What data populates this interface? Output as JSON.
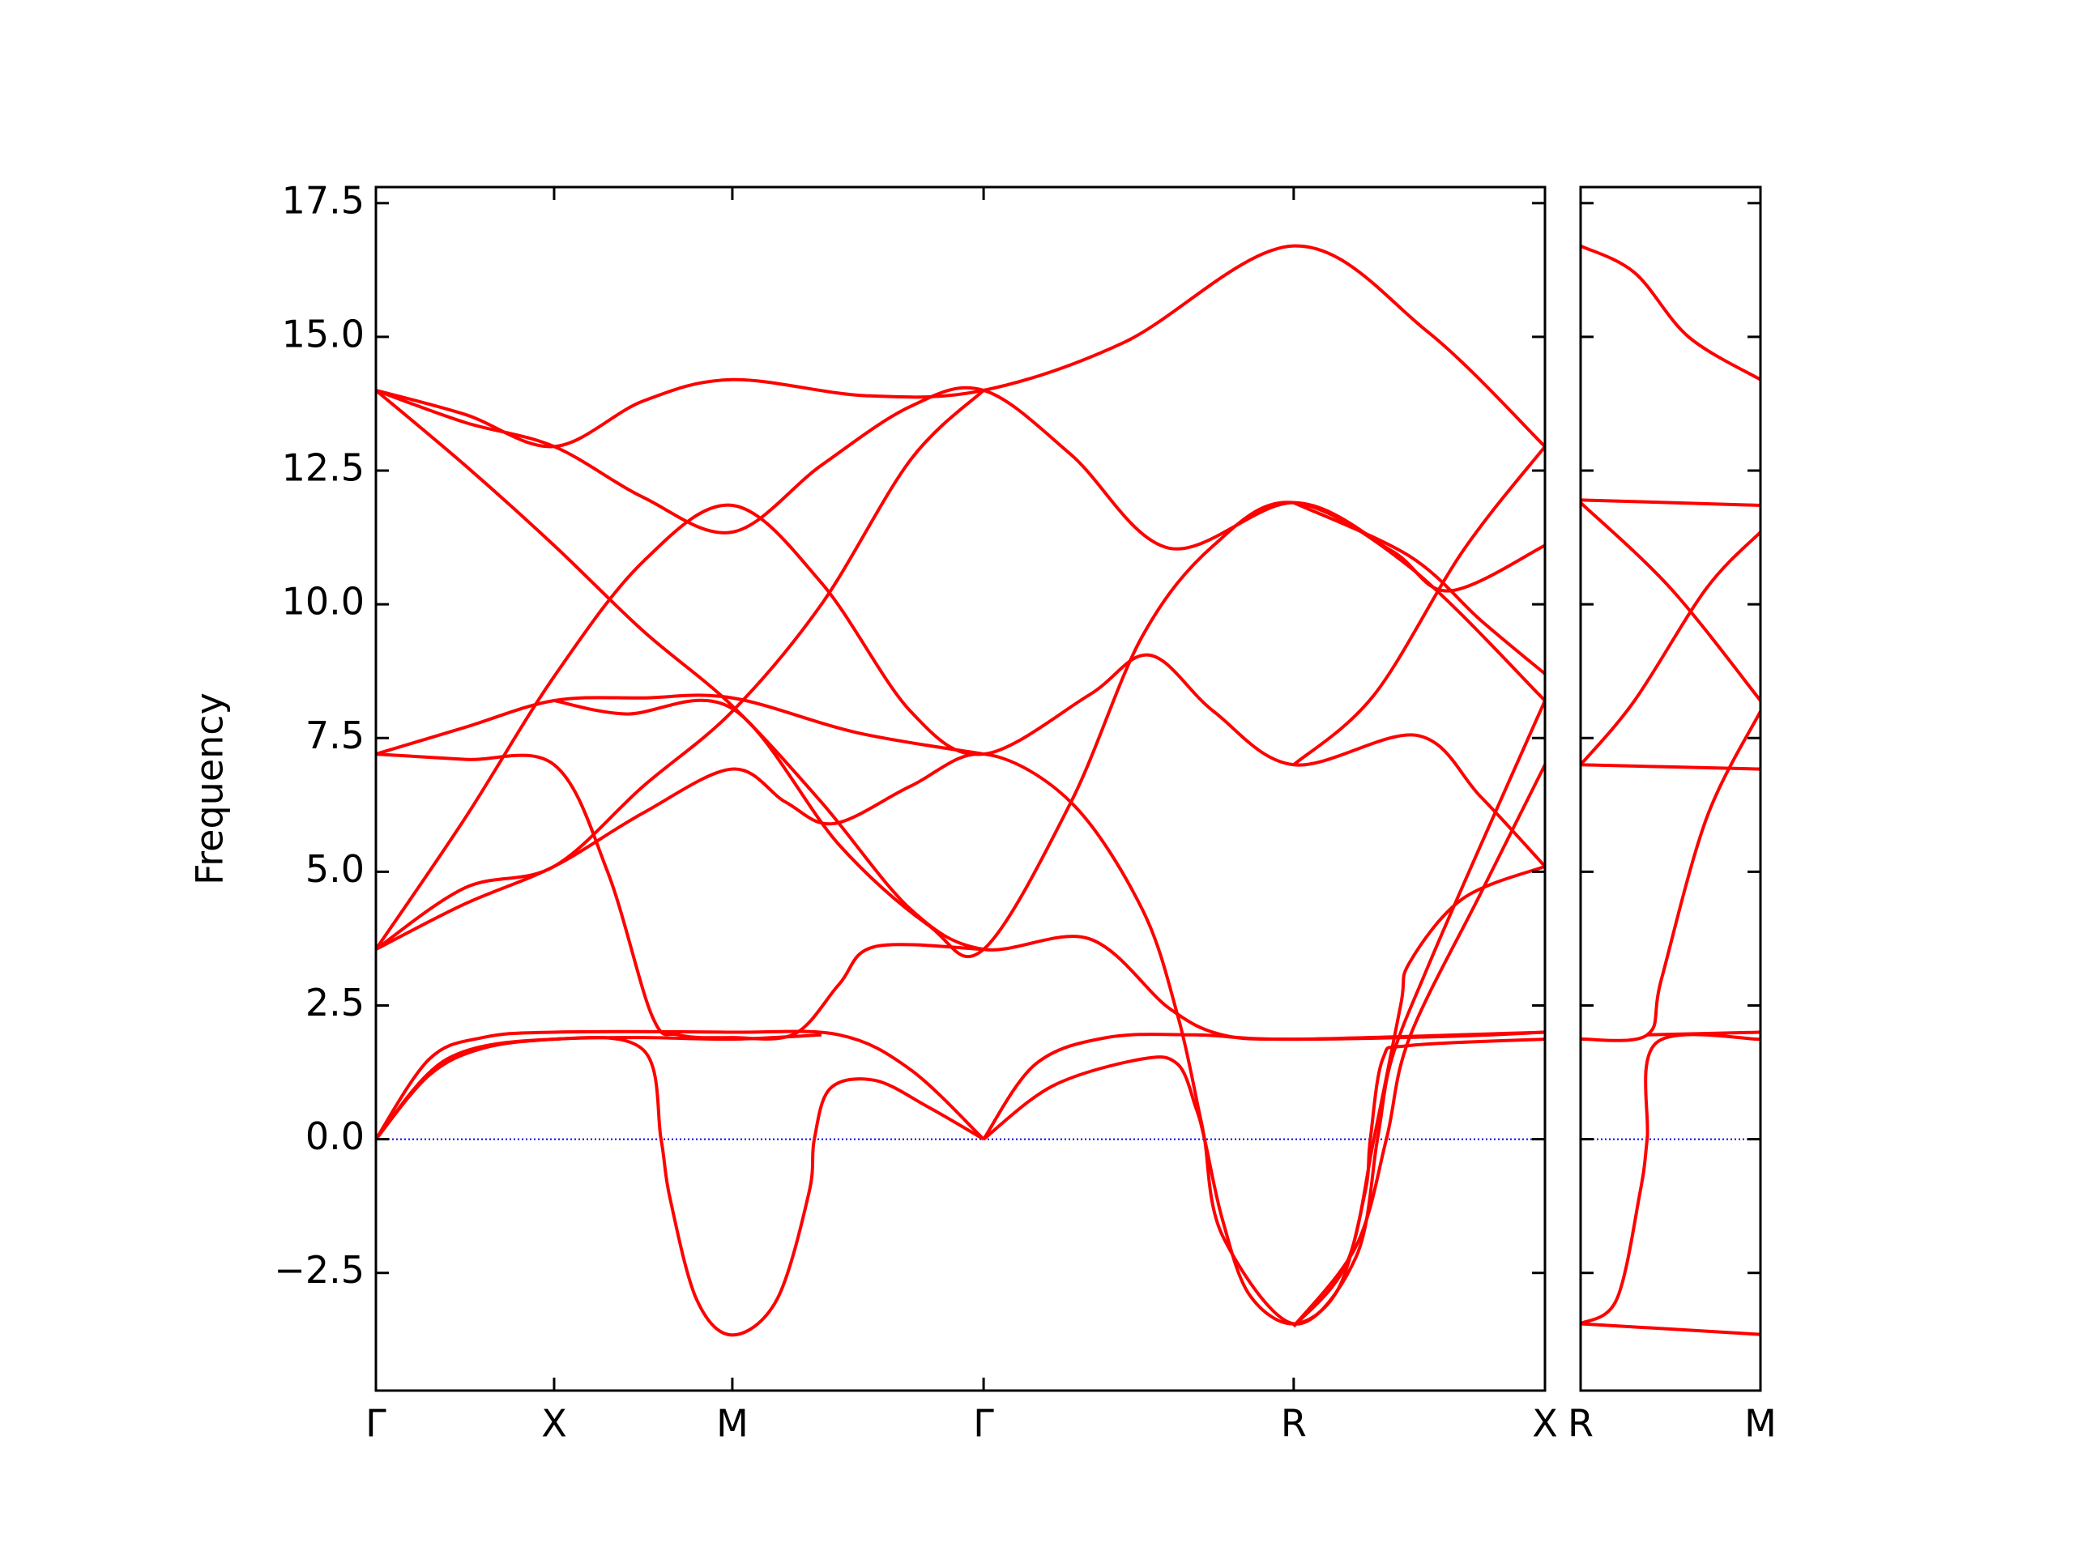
{
  "chart_data": [
    {
      "type": "line",
      "y_label": "Frequency",
      "color": "#ff0000",
      "xlim": [
        0,
        6.56
      ],
      "ylim": [
        -4.7,
        17.8
      ],
      "xticks": [
        {
          "value": 0,
          "label": "Γ"
        },
        {
          "value": 1,
          "label": "X"
        },
        {
          "value": 2,
          "label": "M"
        },
        {
          "value": 3.41,
          "label": "Γ"
        },
        {
          "value": 5.15,
          "label": "R"
        },
        {
          "value": 6.56,
          "label": "X"
        }
      ],
      "yticks": [
        {
          "value": -2.5,
          "label": "−2.5"
        },
        {
          "value": 0,
          "label": "0.0"
        },
        2.5,
        {
          "value": 5,
          "label": "5.0"
        },
        7.5,
        {
          "value": 10,
          "label": "10.0"
        },
        12.5,
        {
          "value": 15,
          "label": "15.0"
        },
        17.5
      ],
      "show_ytick_labels": true,
      "zero_line": {
        "value": 0,
        "color": "#0000ff",
        "style": "dotted"
      },
      "series": [
        {
          "x": [
            0,
            0.5,
            1,
            1.5,
            2,
            2.75,
            3.41,
            4.2,
            5.15,
            5.9,
            6.56
          ],
          "values": [
            14.0,
            13.55,
            12.95,
            13.8,
            14.2,
            13.9,
            14.0,
            14.9,
            16.7,
            15.1,
            12.95
          ]
        },
        {
          "x": [
            0,
            0.5,
            1,
            1.5,
            2,
            2.5,
            3,
            3.41,
            4.0,
            4.45,
            4.75,
            5.15,
            6.0,
            6.56
          ],
          "values": [
            14.0,
            12.6,
            11.1,
            9.5,
            8.1,
            6.3,
            4.3,
            3.55,
            3.75,
            2.45,
            1.95,
            1.87,
            1.92,
            2.0
          ]
        },
        {
          "x": [
            0,
            0.5,
            1,
            1.5,
            2,
            2.5,
            3,
            3.41,
            3.9,
            4.45,
            5.15,
            5.7,
            6.02,
            6.56
          ],
          "values": [
            14.0,
            13.4,
            12.95,
            12.0,
            11.35,
            12.6,
            13.7,
            14.0,
            12.8,
            11.05,
            11.9,
            11.0,
            10.25,
            11.1
          ]
        },
        {
          "x": [
            0,
            0.5,
            1,
            1.5,
            2,
            2.5,
            3,
            3.41,
            4.0,
            4.34,
            4.7,
            5.15,
            5.84,
            6.2,
            6.56
          ],
          "values": [
            3.55,
            6.0,
            8.65,
            10.8,
            11.85,
            10.4,
            8.0,
            7.2,
            8.3,
            9.05,
            8.0,
            7.0,
            7.55,
            6.4,
            5.1
          ]
        },
        {
          "x": [
            0,
            0.5,
            1,
            1.5,
            2,
            2.3,
            2.57,
            3,
            3.41,
            3.9,
            4.3,
            4.5,
            4.62,
            4.65,
            4.75,
            5.15,
            5.5,
            5.62,
            5.7,
            5.9,
            6.2,
            6.56
          ],
          "values": [
            3.55,
            4.4,
            5.1,
            6.1,
            6.92,
            6.3,
            5.9,
            6.6,
            7.2,
            6.3,
            4.3,
            2.3,
            0.5,
            0,
            -1.8,
            -3.45,
            -2.2,
            0,
            1.5,
            3.2,
            5.5,
            8.2
          ]
        },
        {
          "x": [
            0,
            0.5,
            1,
            1.5,
            2,
            2.5,
            3,
            3.41
          ],
          "values": [
            3.55,
            4.7,
            5.1,
            6.6,
            8.0,
            10.0,
            12.7,
            14.0
          ]
        },
        {
          "x": [
            0,
            0.5,
            1,
            1.5,
            2,
            2.7,
            3.41
          ],
          "values": [
            7.2,
            7.7,
            8.2,
            8.25,
            8.25,
            7.6,
            7.2
          ]
        },
        {
          "x": [
            1,
            1.4,
            2,
            2.6,
            3.1,
            3.41,
            3.9,
            4.3,
            4.7,
            5.15,
            5.8,
            6.56
          ],
          "values": [
            8.2,
            7.95,
            8.05,
            5.5,
            4.0,
            3.55,
            6.3,
            9.4,
            11.1,
            11.9,
            10.7,
            8.2
          ]
        },
        {
          "x": [
            5.15,
            5.6,
            6.1,
            6.56
          ],
          "values": [
            7.0,
            8.3,
            11.0,
            12.95
          ]
        },
        {
          "x": [
            5.15,
            5.8,
            6.2,
            6.56
          ],
          "values": [
            11.9,
            10.9,
            9.7,
            8.7
          ]
        },
        {
          "x": [
            5.15,
            5.45,
            5.6,
            5.75,
            5.8,
            6.1,
            6.56
          ],
          "values": [
            -3.5,
            -2.3,
            0,
            2.5,
            3.3,
            4.5,
            5.1
          ]
        },
        {
          "x": [
            5.15,
            5.5,
            5.67,
            5.8,
            6.2,
            6.56
          ],
          "values": [
            -3.5,
            -2.0,
            0,
            1.9,
            4.6,
            7.0
          ]
        },
        {
          "x": [
            0,
            0.3,
            0.6,
            1,
            2,
            2.6,
            3.0,
            3.41
          ],
          "values": [
            0,
            1.5,
            1.9,
            2.0,
            2.0,
            1.95,
            1.3,
            0
          ]
        },
        {
          "x": [
            0,
            0.3,
            0.6,
            1,
            1.5,
            2,
            2.5
          ],
          "values": [
            0,
            1.2,
            1.7,
            1.87,
            1.9,
            1.87,
            1.95
          ]
        },
        {
          "x": [
            0,
            0.5,
            1,
            1.3,
            1.55,
            1.7,
            2,
            2.35,
            2.6,
            2.8,
            3.41
          ],
          "values": [
            7.2,
            7.1,
            7.0,
            5.0,
            2.3,
            1.95,
            1.9,
            1.97,
            2.9,
            3.6,
            3.55
          ]
        },
        {
          "x": [
            0,
            0.4,
            1,
            1.5,
            1.6,
            1.65,
            1.8,
            2,
            2.25,
            2.43,
            2.46,
            2.55,
            2.8,
            3.1,
            3.41
          ],
          "values": [
            0,
            1.5,
            1.87,
            1.67,
            0,
            -1.1,
            -3.0,
            -3.66,
            -3.0,
            -1.0,
            0,
            0.95,
            1.1,
            0.6,
            0
          ]
        },
        {
          "x": [
            3.41,
            3.7,
            4.1,
            4.6,
            5.15,
            6.56
          ],
          "values": [
            0,
            1.4,
            1.9,
            1.95,
            1.87,
            2.0
          ]
        },
        {
          "x": [
            3.41,
            3.8,
            4.3,
            4.5,
            4.6,
            4.65,
            4.75,
            4.9,
            5.15,
            5.4,
            5.55,
            5.58,
            5.65,
            5.8,
            6.56
          ],
          "values": [
            0,
            1.0,
            1.5,
            1.4,
            0.6,
            0,
            -1.5,
            -2.9,
            -3.45,
            -2.8,
            -1.0,
            0,
            1.5,
            1.75,
            1.87
          ]
        }
      ]
    },
    {
      "type": "line",
      "color": "#ff0000",
      "xlim": [
        0,
        1
      ],
      "ylim": [
        -4.7,
        17.8
      ],
      "xticks": [
        {
          "value": 0,
          "label": "R"
        },
        {
          "value": 1,
          "label": "M"
        }
      ],
      "yticks": [
        -2.5,
        0,
        2.5,
        5,
        7.5,
        10,
        12.5,
        15,
        17.5
      ],
      "show_ytick_labels": false,
      "zero_line": {
        "value": 0,
        "color": "#0000ff",
        "style": "dotted"
      },
      "series": [
        {
          "x": [
            0,
            0.3,
            0.6,
            1
          ],
          "values": [
            16.7,
            16.2,
            15.0,
            14.2
          ]
        },
        {
          "x": [
            0,
            1
          ],
          "values": [
            11.95,
            11.85
          ]
        },
        {
          "x": [
            0,
            0.5,
            1
          ],
          "values": [
            11.9,
            10.3,
            8.2
          ]
        },
        {
          "x": [
            0,
            0.3,
            0.7,
            1
          ],
          "values": [
            7.0,
            8.2,
            10.3,
            11.35
          ]
        },
        {
          "x": [
            0,
            1
          ],
          "values": [
            7.0,
            6.92
          ]
        },
        {
          "x": [
            0,
            0.37,
            0.45,
            0.7,
            1
          ],
          "values": [
            1.87,
            1.95,
            3.0,
            6.0,
            8.0
          ]
        },
        {
          "x": [
            0.37,
            1
          ],
          "values": [
            1.95,
            2.0
          ]
        },
        {
          "x": [
            0,
            0.2,
            0.33,
            0.37,
            0.42,
            1
          ],
          "values": [
            -3.45,
            -3.0,
            -1.0,
            0,
            1.8,
            1.87
          ]
        },
        {
          "x": [
            0,
            1
          ],
          "values": [
            -3.45,
            -3.65
          ]
        }
      ]
    }
  ]
}
